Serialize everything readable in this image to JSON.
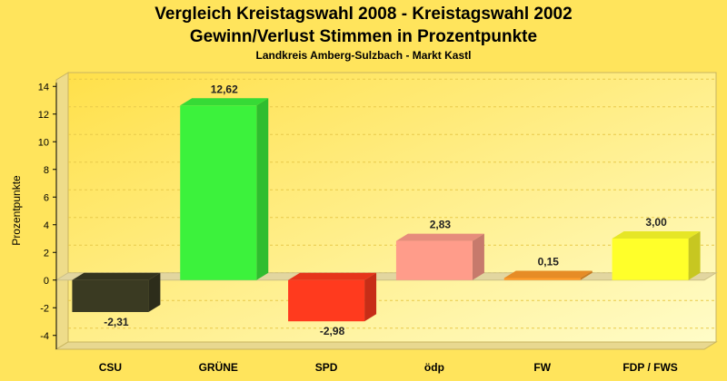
{
  "chart_data": {
    "type": "bar",
    "title_line1": "Vergleich Kreistagswahl 2008 - Kreistagswahl 2002",
    "title_line2": "Gewinn/Verlust Stimmen in Prozentpunkte",
    "subtitle": "Landkreis Amberg-Sulzbach - Markt Kastl",
    "ylabel": "Prozentpunkte",
    "xlabel": "",
    "ylim": [
      -5,
      15
    ],
    "yticks": [
      -4,
      -2,
      0,
      2,
      4,
      6,
      8,
      10,
      12,
      14
    ],
    "grid": true,
    "categories": [
      "CSU",
      "GRÜNE",
      "SPD",
      "ödp",
      "FW",
      "FDP / FWS"
    ],
    "values": [
      -2.31,
      12.62,
      -2.98,
      2.83,
      0.15,
      3.0
    ],
    "value_labels": [
      "-2,31",
      "12,62",
      "-2,98",
      "2,83",
      "0,15",
      "3,00"
    ],
    "colors": [
      "#3a3a22",
      "#3cf23c",
      "#ff3a1e",
      "#ff9c8a",
      "#ff9c2a",
      "#ffff2a"
    ]
  }
}
